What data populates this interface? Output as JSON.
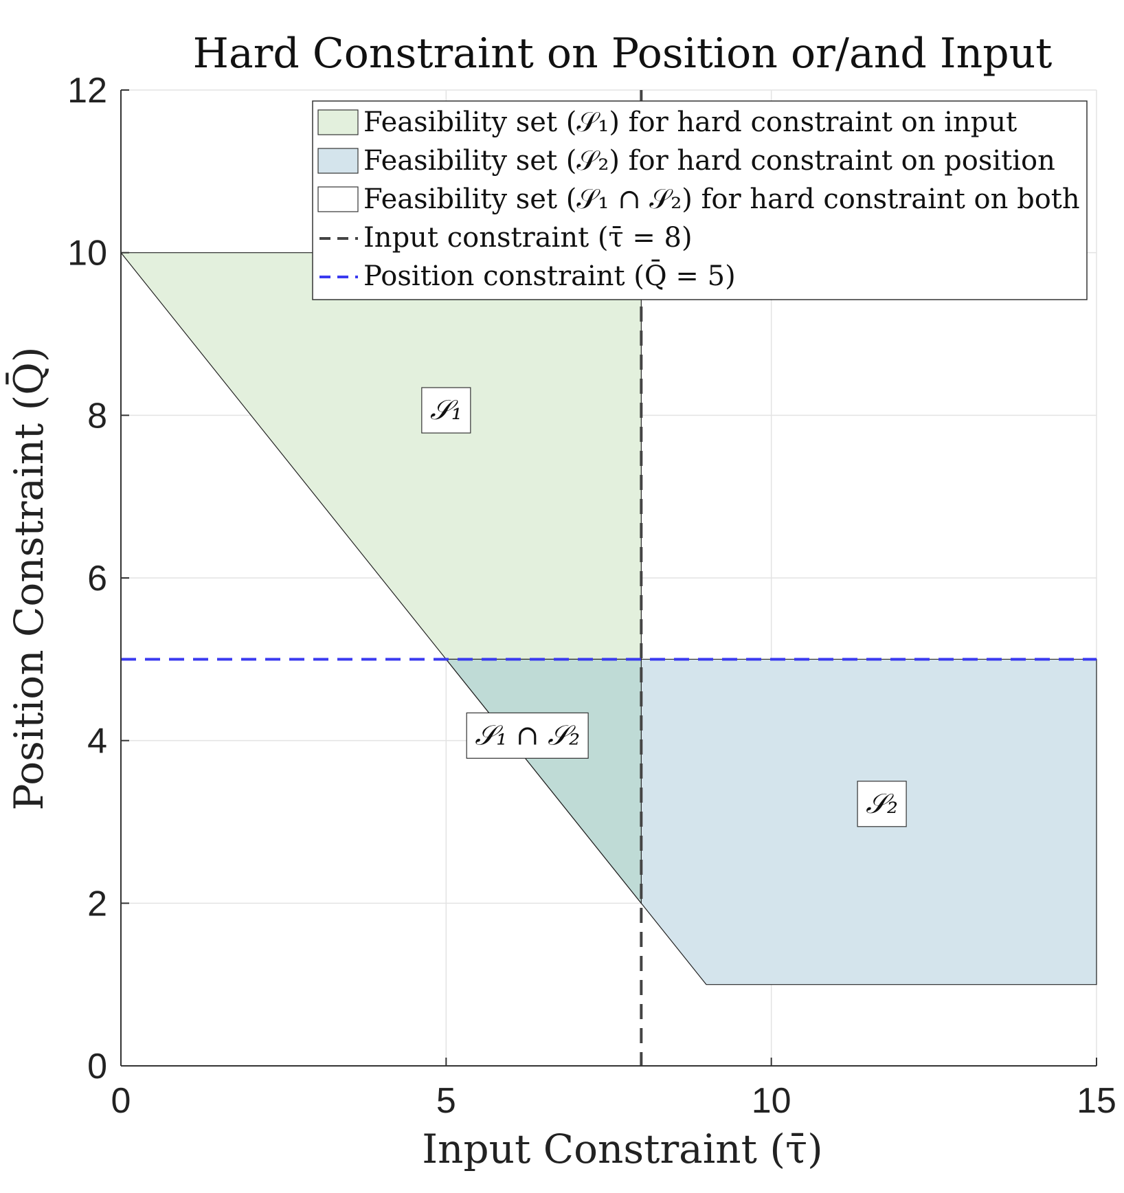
{
  "chart_data": {
    "type": "area",
    "title": "Hard Constraint on Position or/and Input",
    "xlabel": "Input Constraint (τ̄)",
    "ylabel": "Position Constraint (Q̄)",
    "xlim": [
      0,
      15
    ],
    "ylim": [
      0,
      12
    ],
    "xticks": [
      0,
      5,
      10,
      15
    ],
    "yticks": [
      0,
      2,
      4,
      6,
      8,
      10,
      12
    ],
    "xtick_labels": [
      "0",
      "5",
      "10",
      "15"
    ],
    "ytick_labels": [
      "0",
      "2",
      "4",
      "6",
      "8",
      "10",
      "12"
    ],
    "grid": true,
    "legend_position": "top-right",
    "regions": [
      {
        "name": "S1",
        "legend": "Feasibility set (𝒮₁) for hard constraint on input",
        "color": "#e3f0dd",
        "vertices": [
          [
            0,
            10
          ],
          [
            8,
            10
          ],
          [
            8,
            2
          ],
          [
            0,
            10
          ]
        ]
      },
      {
        "name": "S2",
        "legend": "Feasibility set (𝒮₂) for hard constraint on position",
        "color": "#d4e4ec",
        "vertices": [
          [
            5,
            5
          ],
          [
            15,
            5
          ],
          [
            15,
            1
          ],
          [
            9,
            1
          ],
          [
            5,
            5
          ]
        ]
      },
      {
        "name": "S1∩S2",
        "legend": "Feasibility set (𝒮₁ ∩ 𝒮₂) for hard constraint on both",
        "color": "#bfdbd6",
        "vertices": [
          [
            5,
            5
          ],
          [
            8,
            5
          ],
          [
            8,
            2
          ],
          [
            5,
            5
          ]
        ]
      }
    ],
    "lines": [
      {
        "name": "input-constraint",
        "legend": "Input constraint (τ̄ = 8)",
        "color": "#444444",
        "style": "dashed",
        "orientation": "vertical",
        "value": 8
      },
      {
        "name": "position-constraint",
        "legend": "Position constraint (Q̄ = 5)",
        "color": "#3a3af0",
        "style": "dashed",
        "orientation": "horizontal",
        "value": 5
      }
    ],
    "annotations": [
      {
        "text": "𝒮₁",
        "x": 5.0,
        "y": 8.07
      },
      {
        "text": "𝒮₁ ∩ 𝒮₂",
        "x": 6.25,
        "y": 4.07
      },
      {
        "text": "𝒮₂",
        "x": 11.7,
        "y": 3.23
      }
    ]
  }
}
